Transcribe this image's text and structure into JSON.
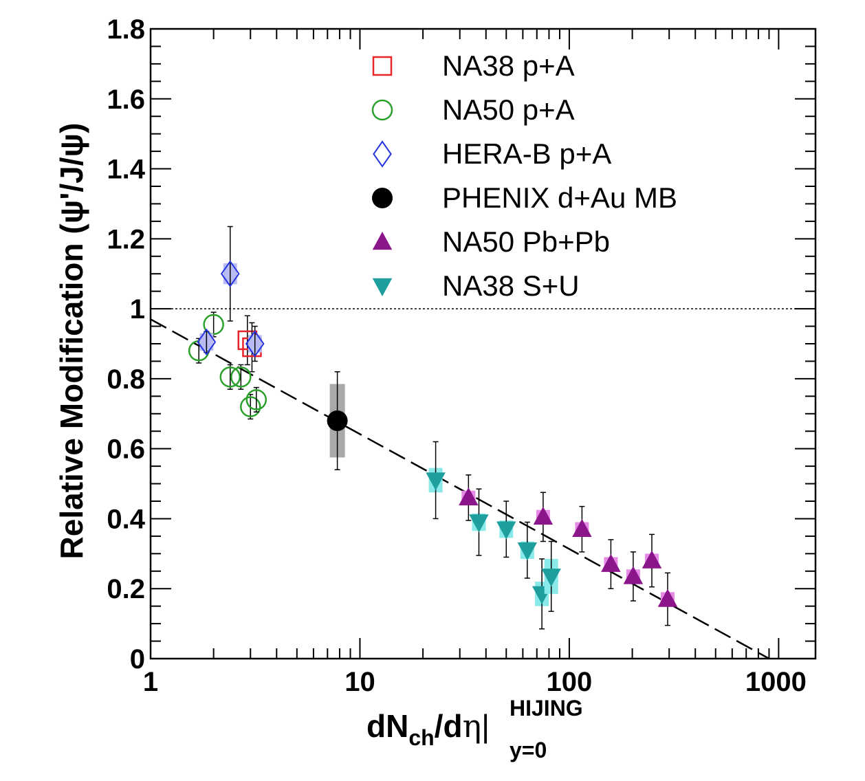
{
  "chart_data": {
    "type": "scatter",
    "xlabel": {
      "main": "dN",
      "sub1": "ch",
      "mid": "/d",
      "eta": "η",
      "bar": "|",
      "sup": "HIJING",
      "sub2": "y=0"
    },
    "ylabel": "Relative Modification (ψ'/J/ψ)",
    "xscale": "log",
    "xlim": [
      1,
      1500
    ],
    "ylim": [
      0,
      1.8
    ],
    "x_ticks": [
      {
        "value": 1,
        "label": "1"
      },
      {
        "value": 10,
        "label": "10"
      },
      {
        "value": 100,
        "label": "100"
      },
      {
        "value": 1000,
        "label": "1000"
      }
    ],
    "y_ticks": [
      {
        "value": 0,
        "label": "0"
      },
      {
        "value": 0.2,
        "label": "0.2"
      },
      {
        "value": 0.4,
        "label": "0.4"
      },
      {
        "value": 0.6,
        "label": "0.6"
      },
      {
        "value": 0.8,
        "label": "0.8"
      },
      {
        "value": 1.0,
        "label": "1"
      },
      {
        "value": 1.2,
        "label": "1.2"
      },
      {
        "value": 1.4,
        "label": "1.4"
      },
      {
        "value": 1.6,
        "label": "1.6"
      },
      {
        "value": 1.8,
        "label": "1.8"
      }
    ],
    "reference_line": {
      "y": 1.0,
      "style": "dotted"
    },
    "fit_line": {
      "x": [
        1,
        900
      ],
      "y": [
        0.97,
        0.0
      ],
      "style": "dashed"
    },
    "legend_position": "top-center",
    "series": [
      {
        "name": "NA38 p+A",
        "marker": "open-square",
        "color": "#e8232a",
        "points": [
          {
            "x": 2.9,
            "y": 0.91,
            "err": 0.07
          },
          {
            "x": 3.05,
            "y": 0.89,
            "err": 0.07
          }
        ]
      },
      {
        "name": "NA50 p+A",
        "marker": "open-circle",
        "color": "#2ca02c",
        "points": [
          {
            "x": 1.7,
            "y": 0.88,
            "err": 0.035
          },
          {
            "x": 2.0,
            "y": 0.955,
            "err": 0.035
          },
          {
            "x": 2.4,
            "y": 0.805,
            "err": 0.035
          },
          {
            "x": 2.7,
            "y": 0.805,
            "err": 0.035
          },
          {
            "x": 3.0,
            "y": 0.72,
            "err": 0.035
          },
          {
            "x": 3.2,
            "y": 0.74,
            "err": 0.035
          }
        ]
      },
      {
        "name": "HERA-B p+A",
        "marker": "open-diamond",
        "color": "#2533e0",
        "sys_color": "#b8bcf2",
        "points": [
          {
            "x": 1.85,
            "y": 0.905,
            "err": 0.03,
            "sys": 0.025
          },
          {
            "x": 2.4,
            "y": 1.1,
            "err": 0.135,
            "sys": 0.03
          },
          {
            "x": 3.15,
            "y": 0.9,
            "err": 0.05,
            "sys": 0.025
          }
        ]
      },
      {
        "name": "PHENIX d+Au MB",
        "marker": "filled-circle",
        "color": "#000000",
        "sys_color": "#a9a9a9",
        "points": [
          {
            "x": 7.8,
            "y": 0.68,
            "err": 0.14,
            "sys": 0.105
          }
        ]
      },
      {
        "name": "NA50 Pb+Pb",
        "marker": "filled-triangle-up",
        "color": "#8b168b",
        "sys_color": "#e58be5",
        "points": [
          {
            "x": 33,
            "y": 0.46,
            "err": 0.065,
            "sys": 0.02
          },
          {
            "x": 75,
            "y": 0.405,
            "err": 0.07,
            "sys": 0.02
          },
          {
            "x": 115,
            "y": 0.37,
            "err": 0.065,
            "sys": 0.02
          },
          {
            "x": 158,
            "y": 0.27,
            "err": 0.07,
            "sys": 0.02
          },
          {
            "x": 202,
            "y": 0.235,
            "err": 0.07,
            "sys": 0.02
          },
          {
            "x": 248,
            "y": 0.28,
            "err": 0.075,
            "sys": 0.02
          },
          {
            "x": 295,
            "y": 0.17,
            "err": 0.075,
            "sys": 0.02
          }
        ]
      },
      {
        "name": "NA38 S+U",
        "marker": "filled-triangle-down",
        "color": "#1f9e9e",
        "sys_color": "#8aeaea",
        "points": [
          {
            "x": 23,
            "y": 0.51,
            "err": 0.11,
            "sys": 0.035
          },
          {
            "x": 37,
            "y": 0.39,
            "err": 0.095,
            "sys": 0.025
          },
          {
            "x": 50,
            "y": 0.37,
            "err": 0.08,
            "sys": 0.025
          },
          {
            "x": 63,
            "y": 0.31,
            "err": 0.08,
            "sys": 0.025
          },
          {
            "x": 74,
            "y": 0.185,
            "err": 0.1,
            "sys": 0.035
          },
          {
            "x": 82,
            "y": 0.235,
            "err": 0.1,
            "sys": 0.05
          }
        ]
      }
    ]
  }
}
